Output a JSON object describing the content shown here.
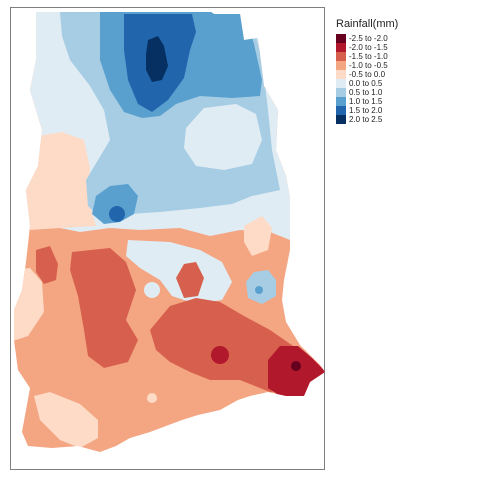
{
  "legend": {
    "title": "Rainfall(mm)",
    "items": [
      {
        "label": "-2.5 to -2.0",
        "color": "#67001f"
      },
      {
        "label": "-2.0 to -1.5",
        "color": "#b2182b"
      },
      {
        "label": "-1.5 to -1.0",
        "color": "#d6604d"
      },
      {
        "label": "-1.0 to -0.5",
        "color": "#f4a582"
      },
      {
        "label": "-0.5 to 0.0",
        "color": "#fddbc7"
      },
      {
        "label": "0.0 to 0.5",
        "color": "#e0ecf4"
      },
      {
        "label": "0.5 to 1.0",
        "color": "#a6cde3"
      },
      {
        "label": "1.0 to 1.5",
        "color": "#5aa0cf"
      },
      {
        "label": "1.5 to 2.0",
        "color": "#2166ac"
      },
      {
        "label": "2.0 to 2.5",
        "color": "#053061"
      }
    ]
  },
  "map": {
    "frame_color": "#7f7f7f",
    "background": "#ffffff"
  }
}
